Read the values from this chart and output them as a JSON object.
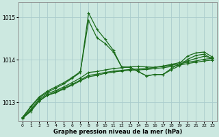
{
  "xlabel": "Graphe pression niveau de la mer (hPa)",
  "background_color": "#cce8e0",
  "grid_color": "#aacccc",
  "line_color": "#1a6b1a",
  "x_ticks": [
    0,
    1,
    2,
    3,
    4,
    5,
    6,
    7,
    8,
    9,
    10,
    11,
    12,
    13,
    14,
    15,
    16,
    17,
    18,
    19,
    20,
    21,
    22,
    23
  ],
  "y_ticks": [
    1013,
    1014,
    1015
  ],
  "ylim": [
    1012.55,
    1015.35
  ],
  "xlim": [
    -0.5,
    23.5
  ],
  "series": [
    [
      1012.62,
      1012.78,
      1013.02,
      1013.16,
      1013.22,
      1013.31,
      1013.4,
      1013.5,
      1013.6,
      1013.63,
      1013.68,
      1013.71,
      1013.73,
      1013.75,
      1013.76,
      1013.77,
      1013.79,
      1013.81,
      1013.84,
      1013.87,
      1013.91,
      1013.94,
      1013.97,
      1013.99
    ],
    [
      1012.62,
      1012.8,
      1013.03,
      1013.17,
      1013.24,
      1013.33,
      1013.42,
      1013.52,
      1013.63,
      1013.66,
      1013.7,
      1013.73,
      1013.75,
      1013.77,
      1013.78,
      1013.79,
      1013.82,
      1013.84,
      1013.87,
      1013.9,
      1013.94,
      1013.97,
      1014.01,
      1014.03
    ],
    [
      1012.63,
      1012.83,
      1013.06,
      1013.2,
      1013.27,
      1013.36,
      1013.46,
      1013.57,
      1013.7,
      1013.72,
      1013.76,
      1013.79,
      1013.81,
      1013.83,
      1013.84,
      1013.83,
      1013.82,
      1013.85,
      1013.89,
      1013.93,
      1013.97,
      1014.03,
      1014.08,
      1014.04
    ],
    [
      1012.64,
      1012.88,
      1013.1,
      1013.23,
      1013.33,
      1013.43,
      1013.56,
      1013.7,
      1015.1,
      1014.72,
      1014.48,
      1014.22,
      1013.83,
      1013.82,
      1013.72,
      1013.62,
      1013.65,
      1013.65,
      1013.76,
      1013.86,
      1014.01,
      1014.1,
      1014.13,
      1014.01
    ],
    [
      1012.64,
      1012.9,
      1013.12,
      1013.26,
      1013.36,
      1013.46,
      1013.58,
      1013.72,
      1014.92,
      1014.52,
      1014.38,
      1014.18,
      1013.83,
      1013.82,
      1013.72,
      1013.62,
      1013.65,
      1013.65,
      1013.79,
      1013.91,
      1014.09,
      1014.16,
      1014.18,
      1014.06
    ]
  ]
}
